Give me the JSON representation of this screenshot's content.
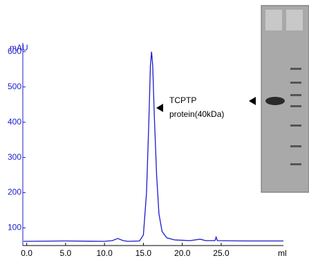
{
  "chart_data": {
    "type": "line",
    "y_label": "mAU",
    "x_label": "ml",
    "annotation_line1": "TCPTP",
    "annotation_line2": "protein(40kDa)",
    "x": [
      -0.4,
      5,
      10,
      11.0,
      11.7,
      12.4,
      13,
      14.5,
      15.0,
      15.4,
      15.7,
      15.9,
      16.05,
      16.2,
      16.4,
      16.7,
      17.0,
      17.4,
      18,
      19,
      21,
      22.3,
      23,
      24.2,
      24.35,
      24.5,
      28,
      33
    ],
    "series": [
      {
        "color": "#1a1acc",
        "values": [
          62,
          63,
          62,
          64,
          70,
          64,
          62,
          63,
          80,
          200,
          400,
          560,
          600,
          560,
          420,
          250,
          140,
          90,
          72,
          66,
          64,
          68,
          64,
          64,
          74,
          64,
          63,
          63
        ]
      }
    ],
    "xlim": [
      -0.5,
      33
    ],
    "ylim": [
      50,
      625
    ],
    "xticks": [
      {
        "value": 0,
        "label": "0.0"
      },
      {
        "value": 5,
        "label": "5.0"
      },
      {
        "value": 10,
        "label": "10.0"
      },
      {
        "value": 15,
        "label": "15.0"
      },
      {
        "value": 20,
        "label": "20.0"
      },
      {
        "value": 25,
        "label": "25.0"
      }
    ],
    "yticks": [
      100,
      200,
      300,
      400,
      500,
      600
    ]
  }
}
